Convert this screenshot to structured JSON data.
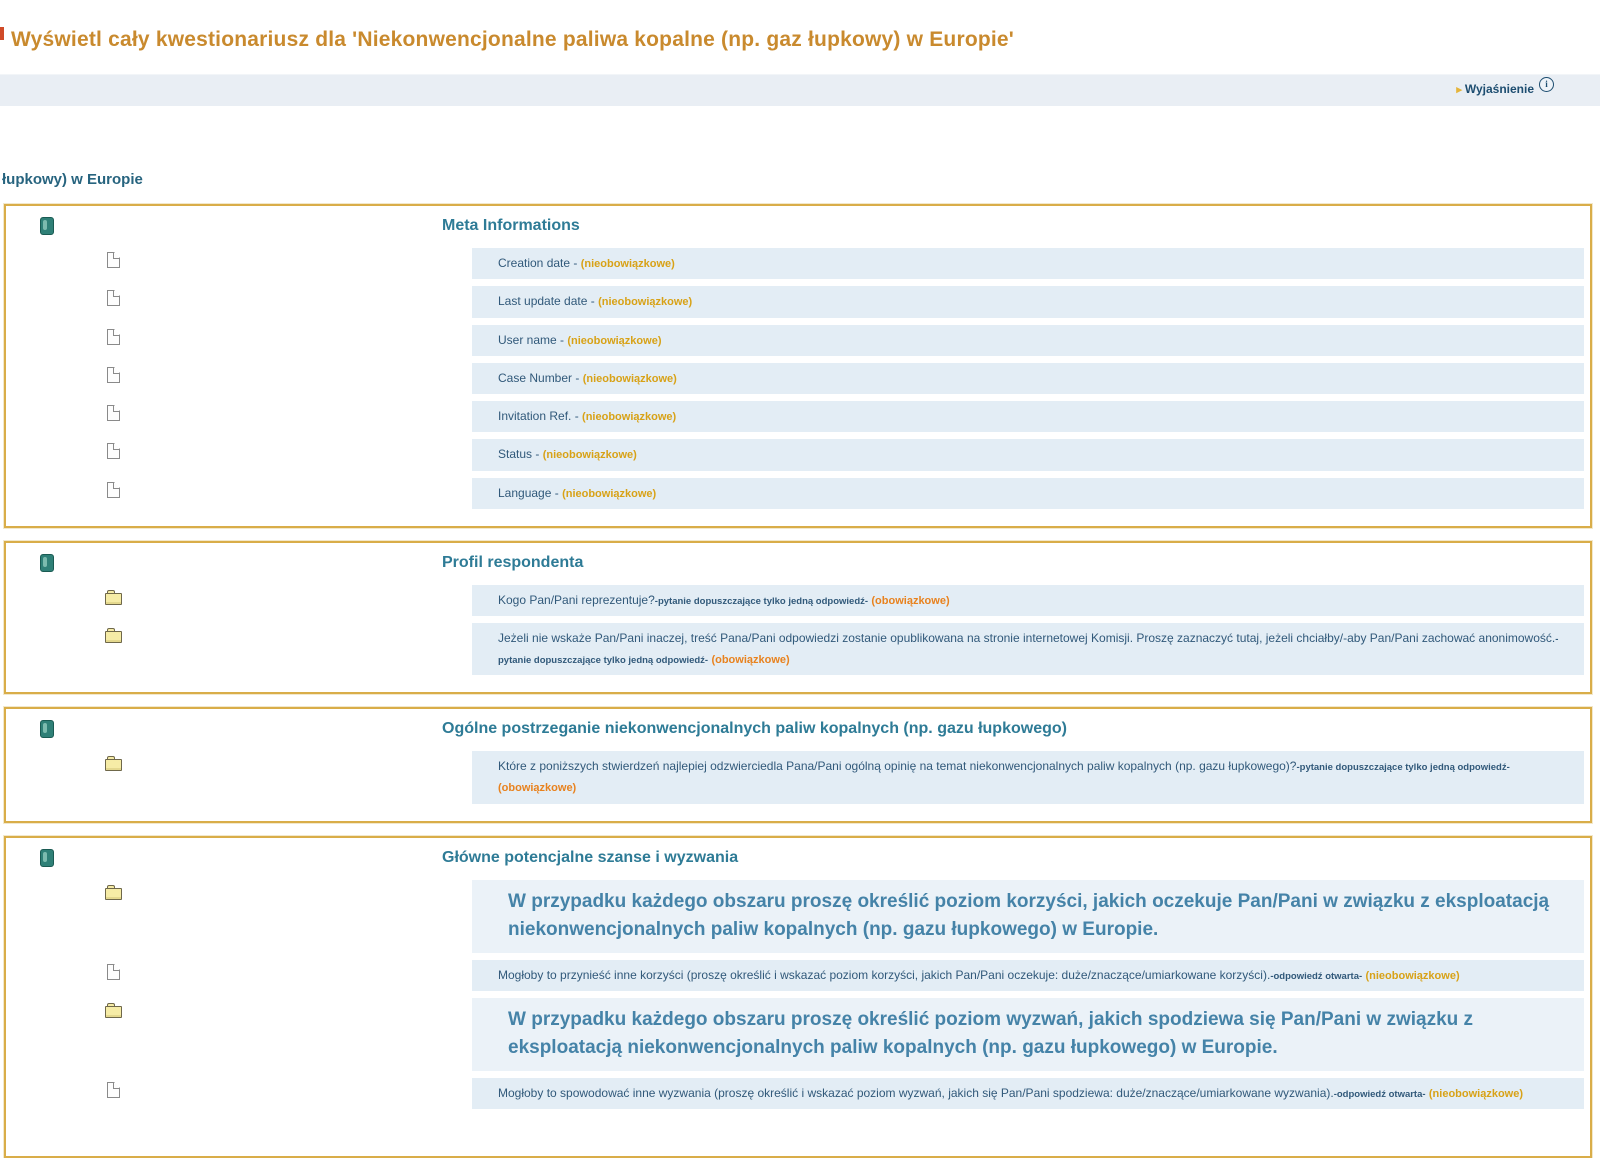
{
  "page": {
    "title": "Wyświetl cały kwestionariusz dla 'Niekonwencjonalne paliwa kopalne (np. gaz łupkowy) w Europie'",
    "survey_line": "łupkowy) w Europie"
  },
  "toolbar": {
    "explanation_label": "Wyjaśnienie",
    "arrow_glyph": "▸",
    "info_glyph": "i"
  },
  "labels": {
    "optional": "(nieobowiązkowe)",
    "mandatory": "(obowiązkowe)"
  },
  "sections": [
    {
      "title": "Meta Informations",
      "items": [
        {
          "icon": "doc",
          "text": "Creation date",
          "sep": " - ",
          "suffix": "optional"
        },
        {
          "icon": "doc",
          "text": "Last update date",
          "sep": " - ",
          "suffix": "optional"
        },
        {
          "icon": "doc",
          "text": "User name",
          "sep": " - ",
          "suffix": "optional"
        },
        {
          "icon": "doc",
          "text": "Case Number",
          "sep": " - ",
          "suffix": "optional"
        },
        {
          "icon": "doc",
          "text": "Invitation Ref.",
          "sep": " - ",
          "suffix": "optional"
        },
        {
          "icon": "doc",
          "text": "Status",
          "sep": " - ",
          "suffix": "optional"
        },
        {
          "icon": "doc",
          "text": "Language",
          "sep": " - ",
          "suffix": "optional"
        }
      ]
    },
    {
      "title": "Profil respondenta",
      "items": [
        {
          "icon": "folder",
          "text": "Kogo Pan/Pani reprezentuje?",
          "note": "-pytanie dopuszczające tylko jedną odpowiedź-",
          "suffix": "mandatory"
        },
        {
          "icon": "folder",
          "text": "Jeżeli nie wskaże Pan/Pani inaczej, treść Pana/Pani odpowiedzi zostanie opublikowana na stronie internetowej Komisji. Proszę zaznaczyć tutaj, jeżeli chciałby/-aby Pan/Pani zachować anonimowość.",
          "note": "-pytanie dopuszczające tylko jedną odpowiedź-",
          "suffix": "mandatory"
        }
      ]
    },
    {
      "title": "Ogólne postrzeganie niekonwencjonalnych paliw kopalnych (np. gazu łupkowego)",
      "items": [
        {
          "icon": "folder",
          "text": "Które z poniższych stwierdzeń najlepiej odzwierciedla Pana/Pani ogólną opinię na temat niekonwencjonalnych paliw kopalnych (np. gazu łupkowego)?",
          "note": "-pytanie dopuszczające tylko jedną odpowiedź-",
          "suffix": "mandatory"
        }
      ]
    },
    {
      "title": "Główne potencjalne szanse i wyzwania",
      "items": [
        {
          "icon": "folder",
          "size": "large",
          "text": "W przypadku każdego obszaru proszę określić poziom korzyści, jakich oczekuje Pan/Pani w związku z eksploatacją niekonwencjonalnych paliw kopalnych (np. gazu łupkowego) w Europie."
        },
        {
          "icon": "doc",
          "text": "Mogłoby to przynieść inne korzyści (proszę określić i wskazać poziom korzyści, jakich Pan/Pani oczekuje: duże/znaczące/umiarkowane korzyści).",
          "note": "-odpowiedź otwarta-",
          "suffix": "optional"
        },
        {
          "icon": "folder",
          "size": "large",
          "text": "W przypadku każdego obszaru proszę określić poziom wyzwań, jakich spodziewa się Pan/Pani w związku z eksploatacją niekonwencjonalnych paliw kopalnych (np. gazu łupkowego) w Europie."
        },
        {
          "icon": "doc",
          "text": "Mogłoby to spowodować inne wyzwania (proszę określić i wskazać poziom wyzwań, jakich się Pan/Pani spodziewa: duże/znaczące/umiarkowane wyzwania).",
          "note": "-odpowiedź otwarta-",
          "suffix": "optional"
        }
      ]
    }
  ]
}
